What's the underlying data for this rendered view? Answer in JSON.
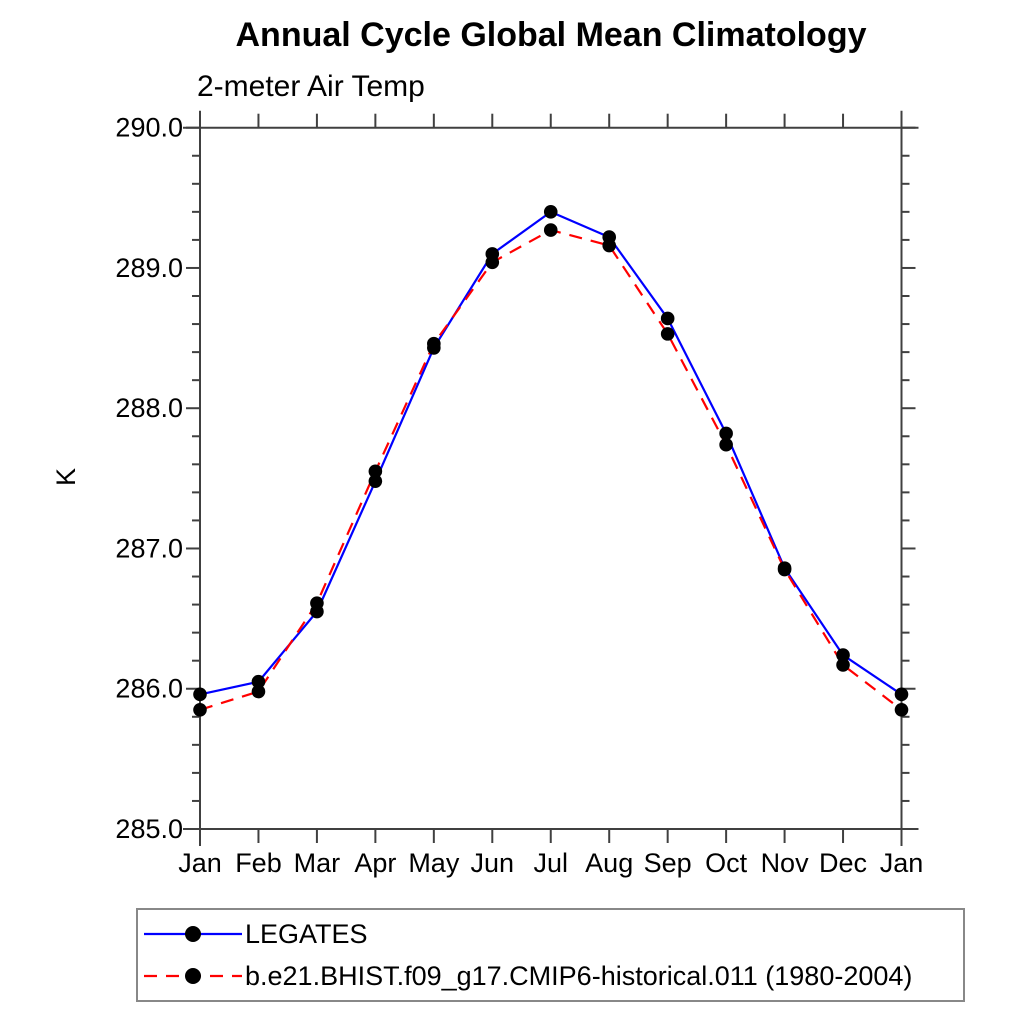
{
  "title": "Annual Cycle Global Mean Climatology",
  "subtitle": "2-meter Air Temp",
  "colors": {
    "series1": "#0000ff",
    "series2": "#ff0000",
    "marker": "#000000",
    "axis": "#404040",
    "text": "#000000",
    "legend_border": "#888888"
  },
  "chart_data": {
    "type": "line",
    "title": "Annual Cycle Global Mean Climatology",
    "subtitle": "2-meter Air Temp",
    "xlabel": "",
    "ylabel": "K",
    "categories": [
      "Jan",
      "Feb",
      "Mar",
      "Apr",
      "May",
      "Jun",
      "Jul",
      "Aug",
      "Sep",
      "Oct",
      "Nov",
      "Dec",
      "Jan"
    ],
    "series": [
      {
        "name": "LEGATES",
        "color": "#0000ff",
        "line_style": "solid",
        "marker": "circle",
        "marker_color": "#000000",
        "values": [
          285.96,
          286.05,
          286.55,
          287.48,
          288.43,
          289.1,
          289.4,
          289.22,
          288.64,
          287.82,
          286.86,
          286.24,
          285.96
        ]
      },
      {
        "name": "b.e21.BHIST.f09_g17.CMIP6-historical.011 (1980-2004)",
        "color": "#ff0000",
        "line_style": "dashed",
        "marker": "circle",
        "marker_color": "#000000",
        "values": [
          285.85,
          285.98,
          286.61,
          287.55,
          288.46,
          289.04,
          289.27,
          289.16,
          288.53,
          287.74,
          286.85,
          286.17,
          285.85
        ]
      }
    ],
    "ylim": [
      285.0,
      290.0
    ],
    "ytick_major": [
      285.0,
      286.0,
      287.0,
      288.0,
      289.0,
      290.0
    ],
    "ytick_labels": [
      "285.0",
      "286.0",
      "287.0",
      "288.0",
      "289.0",
      "290.0"
    ],
    "ytick_minor_step": 0.2,
    "grid": false,
    "legend_position": "bottom-left"
  }
}
